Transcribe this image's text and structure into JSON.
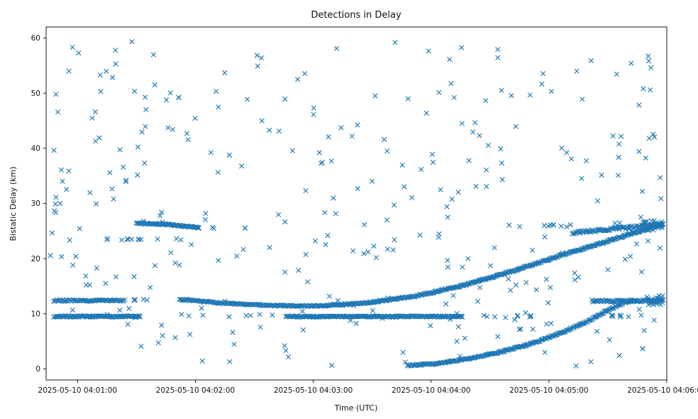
{
  "figure": {
    "title": "Detections in Delay"
  },
  "chart_data": {
    "type": "scatter",
    "marker": "x",
    "marker_color": "#1f77b4",
    "title": "Detections in Delay",
    "xlabel": "Time (UTC)",
    "ylabel": "Bistatic Delay (km)",
    "x_axis": {
      "tick_seconds": [
        0,
        60,
        120,
        180,
        240,
        300
      ],
      "tick_labels": [
        "2025-05-10 04:01:00",
        "2025-05-10 04:02:00",
        "2025-05-10 04:03:00",
        "2025-05-10 04:04:00",
        "2025-05-10 04:05:00",
        "2025-05-10 04:06:00"
      ],
      "xlim_seconds": [
        -16,
        300
      ]
    },
    "y_axis": {
      "ticks": [
        0,
        10,
        20,
        30,
        40,
        50,
        60
      ],
      "ylim": [
        -2,
        62
      ]
    },
    "grid": false,
    "legend": "none",
    "seed": 7,
    "tracks": [
      {
        "name": "band-9.5-left",
        "control_points": [
          [
            -12,
            9.5
          ],
          [
            32,
            9.5
          ]
        ],
        "rate": 2.3,
        "jitter": 0.12
      },
      {
        "name": "band-9.5-sparse-mid",
        "control_points": [
          [
            38,
            9.6
          ],
          [
            104,
            9.6
          ]
        ],
        "n": 8,
        "jitter": 0.3
      },
      {
        "name": "band-9.5-main",
        "control_points": [
          [
            106,
            9.5
          ],
          [
            196,
            9.5
          ]
        ],
        "rate": 2.3,
        "jitter": 0.12
      },
      {
        "name": "band-9.5-sparse-right",
        "control_points": [
          [
            200,
            9.5
          ],
          [
            292,
            9.5
          ]
        ],
        "n": 15,
        "jitter": 0.25
      },
      {
        "name": "band-12.4-left",
        "control_points": [
          [
            -12,
            12.4
          ],
          [
            24,
            12.4
          ]
        ],
        "rate": 2.0,
        "jitter": 0.14
      },
      {
        "name": "band-12.4-left-tail",
        "control_points": [
          [
            26,
            12.4
          ],
          [
            46,
            12.5
          ]
        ],
        "n": 5,
        "jitter": 0.2
      },
      {
        "name": "track-descending-12",
        "control_points": [
          [
            52,
            12.6
          ],
          [
            75,
            11.9
          ],
          [
            98,
            11.5
          ],
          [
            122,
            11.4
          ]
        ],
        "rate": 2.0,
        "jitter": 0.12
      },
      {
        "name": "track-rising-main",
        "control_points": [
          [
            122,
            11.4
          ],
          [
            148,
            12.0
          ],
          [
            172,
            13.2
          ],
          [
            196,
            15.1
          ],
          [
            222,
            17.8
          ],
          [
            248,
            20.8
          ],
          [
            272,
            23.4
          ],
          [
            298,
            26.3
          ]
        ],
        "rate": 2.3,
        "jitter": 0.13
      },
      {
        "name": "track-rising-low",
        "control_points": [
          [
            168,
            0.6
          ],
          [
            184,
            1.0
          ],
          [
            200,
            1.9
          ],
          [
            216,
            3.1
          ],
          [
            232,
            4.7
          ],
          [
            248,
            6.8
          ],
          [
            260,
            8.7
          ],
          [
            270,
            10.6
          ],
          [
            278,
            12.0
          ],
          [
            284,
            12.4
          ]
        ],
        "rate": 2.2,
        "jitter": 0.14
      },
      {
        "name": "band-12.3-right",
        "control_points": [
          [
            262,
            12.3
          ],
          [
            298,
            12.4
          ]
        ],
        "rate": 2.1,
        "jitter": 0.2
      },
      {
        "name": "cluster-12.5-end",
        "control_points": [
          [
            290,
            12.5
          ],
          [
            298,
            12.5
          ]
        ],
        "rate": 2.6,
        "jitter": 1.0
      },
      {
        "name": "band-26-left",
        "control_points": [
          [
            30,
            26.4
          ],
          [
            46,
            26.2
          ],
          [
            62,
            25.6
          ]
        ],
        "rate": 2.4,
        "jitter": 0.12
      },
      {
        "name": "band-26-left-tail",
        "control_points": [
          [
            64,
            25.6
          ],
          [
            88,
            25.4
          ]
        ],
        "n": 4,
        "jitter": 0.15
      },
      {
        "name": "band-23.5-left",
        "control_points": [
          [
            12,
            23.5
          ],
          [
            56,
            23.5
          ]
        ],
        "n": 12,
        "jitter": 0.12
      },
      {
        "name": "band-26-mid-sparse",
        "control_points": [
          [
            218,
            26.0
          ],
          [
            252,
            25.9
          ]
        ],
        "n": 10,
        "jitter": 0.25
      },
      {
        "name": "band-26-right",
        "control_points": [
          [
            252,
            24.7
          ],
          [
            272,
            25.4
          ],
          [
            298,
            26.2
          ]
        ],
        "rate": 2.1,
        "jitter": 0.25
      },
      {
        "name": "cluster-26-end",
        "control_points": [
          [
            288,
            26.0
          ],
          [
            298,
            26.0
          ]
        ],
        "rate": 2.8,
        "jitter": 0.9
      }
    ],
    "clutter": {
      "count": 320,
      "t_range": [
        -14,
        298
      ],
      "y_range": [
        0.5,
        59.7
      ]
    }
  }
}
